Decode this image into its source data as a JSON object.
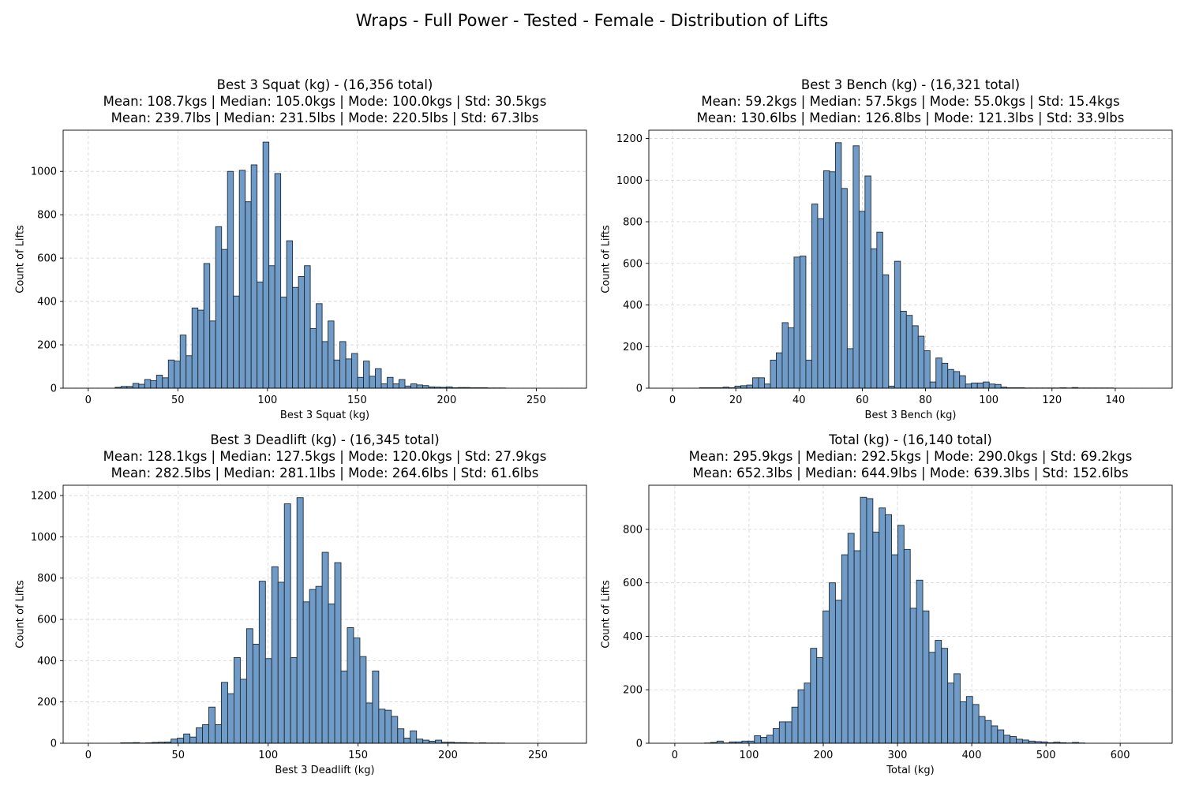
{
  "suptitle": "Wraps - Full Power - Tested - Female - Distribution of Lifts",
  "colors": {
    "bar_fill": "#6f9bc6",
    "bar_edge": "#1c2a38",
    "grid": "#d3d3d3",
    "axis": "#000000"
  },
  "chart_data": [
    {
      "type": "bar",
      "title_lines": [
        "Best 3 Squat (kg) - (16,356 total)",
        "Mean: 108.7kgs | Median: 105.0kgs | Mode: 100.0kgs | Std: 30.5kgs",
        "Mean: 239.7lbs | Median: 231.5lbs | Mode: 220.5lbs | Std: 67.3lbs"
      ],
      "xlabel": "Best 3 Squat (kg)",
      "ylabel": "Count of Lifts",
      "xlim": [
        -14,
        278
      ],
      "ylim": [
        0,
        1190
      ],
      "xticks": [
        0,
        50,
        100,
        150,
        200,
        250
      ],
      "yticks": [
        0,
        200,
        400,
        600,
        800,
        1000
      ],
      "grid": true,
      "bin_start": 15,
      "bin_width": 3.3,
      "values": [
        4,
        8,
        8,
        22,
        18,
        40,
        35,
        60,
        48,
        130,
        125,
        245,
        150,
        370,
        360,
        575,
        310,
        745,
        640,
        1000,
        425,
        1005,
        860,
        1030,
        490,
        1135,
        565,
        990,
        420,
        680,
        465,
        515,
        565,
        275,
        390,
        215,
        310,
        130,
        215,
        135,
        160,
        50,
        125,
        55,
        90,
        20,
        50,
        20,
        40,
        10,
        20,
        15,
        12,
        6,
        5,
        4,
        6,
        2,
        3,
        3,
        2,
        2,
        2,
        1,
        1,
        1
      ]
    },
    {
      "type": "bar",
      "title_lines": [
        "Best 3 Bench (kg) - (16,321 total)",
        "Mean: 59.2kgs | Median: 57.5kgs | Mode: 55.0kgs | Std: 15.4kgs",
        "Mean: 130.6lbs | Median: 126.8lbs | Mode: 121.3lbs | Std: 33.9lbs"
      ],
      "xlabel": "Best 3 Bench (kg)",
      "ylabel": "Count of Lifts",
      "xlim": [
        -7.5,
        158
      ],
      "ylim": [
        0,
        1240
      ],
      "xticks": [
        0,
        20,
        40,
        60,
        80,
        100,
        120,
        140
      ],
      "yticks": [
        0,
        200,
        400,
        600,
        800,
        1000,
        1200
      ],
      "grid": true,
      "bin_start": 8.5,
      "bin_width": 1.87,
      "values": [
        2,
        2,
        2,
        2,
        5,
        2,
        10,
        12,
        15,
        50,
        50,
        20,
        135,
        170,
        315,
        290,
        630,
        635,
        135,
        885,
        815,
        1045,
        1040,
        1180,
        960,
        190,
        1165,
        850,
        1020,
        670,
        750,
        545,
        10,
        610,
        370,
        350,
        300,
        250,
        180,
        30,
        145,
        120,
        90,
        80,
        60,
        20,
        25,
        25,
        30,
        20,
        18,
        5,
        2,
        2,
        2,
        1,
        1,
        1,
        1,
        1,
        1,
        2,
        1,
        3,
        1,
        1,
        1,
        1,
        1,
        1
      ]
    },
    {
      "type": "bar",
      "title_lines": [
        "Best 3 Deadlift (kg) - (16,345 total)",
        "Mean: 128.1kgs | Median: 127.5kgs | Mode: 120.0kgs | Std: 27.9kgs",
        "Mean: 282.5lbs | Median: 281.1lbs | Mode: 264.6lbs | Std: 61.6lbs"
      ],
      "xlabel": "Best 3 Deadlift (kg)",
      "ylabel": "Count of Lifts",
      "xlim": [
        -14,
        277
      ],
      "ylim": [
        0,
        1250
      ],
      "xticks": [
        0,
        50,
        100,
        150,
        200,
        250
      ],
      "yticks": [
        0,
        200,
        400,
        600,
        800,
        1000,
        1200
      ],
      "grid": true,
      "bin_start": 18,
      "bin_width": 3.5,
      "values": [
        2,
        2,
        3,
        1,
        2,
        4,
        5,
        6,
        20,
        25,
        45,
        30,
        75,
        90,
        175,
        90,
        295,
        240,
        415,
        310,
        555,
        480,
        785,
        410,
        855,
        780,
        1160,
        415,
        1190,
        685,
        745,
        760,
        925,
        675,
        875,
        350,
        560,
        510,
        420,
        195,
        350,
        165,
        160,
        130,
        70,
        25,
        60,
        20,
        15,
        10,
        15,
        5,
        5,
        3,
        3,
        2,
        1,
        2,
        1,
        1,
        1
      ]
    },
    {
      "type": "bar",
      "title_lines": [
        "Total (kg) - (16,140 total)",
        "Mean: 295.9kgs | Median: 292.5kgs | Mode: 290.0kgs | Std: 69.2kgs",
        "Mean: 652.3lbs | Median: 644.9lbs | Mode: 639.3lbs | Std: 152.6lbs"
      ],
      "xlabel": "Total (kg)",
      "ylabel": "Count of Lifts",
      "xlim": [
        -35,
        670
      ],
      "ylim": [
        0,
        965
      ],
      "xticks": [
        0,
        100,
        200,
        300,
        400,
        500,
        600
      ],
      "yticks": [
        0,
        200,
        400,
        600,
        800
      ],
      "grid": true,
      "bin_start": 40,
      "bin_width": 8.4,
      "values": [
        1,
        3,
        8,
        1,
        5,
        5,
        8,
        8,
        28,
        22,
        30,
        55,
        80,
        80,
        135,
        200,
        225,
        355,
        320,
        495,
        600,
        535,
        705,
        785,
        720,
        920,
        915,
        790,
        880,
        855,
        705,
        815,
        725,
        505,
        610,
        495,
        340,
        385,
        355,
        225,
        260,
        155,
        175,
        145,
        100,
        85,
        65,
        50,
        30,
        25,
        15,
        12,
        8,
        6,
        5,
        2,
        4,
        2,
        1,
        3,
        1
      ]
    }
  ]
}
